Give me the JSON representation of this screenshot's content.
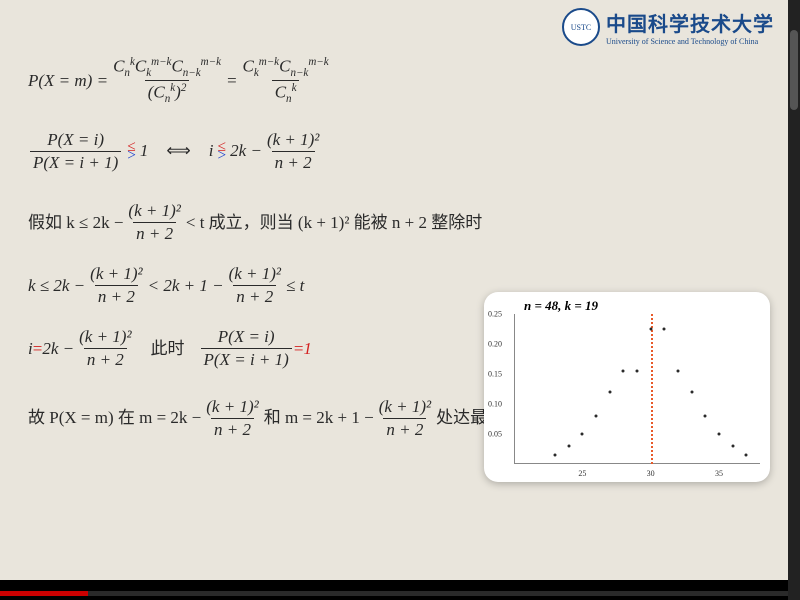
{
  "university": {
    "name_cn": "中国科学技术大学",
    "name_en": "University of Science and Technology of China"
  },
  "eq1": {
    "lhs": "P(X = m) = ",
    "f1_num": "C",
    "f1_den": "(Cₙᵏ)²",
    "mid": " = ",
    "f2_den": "Cₙᵏ"
  },
  "eq2": {
    "f_num": "P(X = i)",
    "f_den": "P(X = i + 1)",
    "one": " 1",
    "iff": " ⟺ ",
    "ivar": "i ",
    "rhs_a": " 2k − ",
    "rhs_fnum": "(k + 1)²",
    "rhs_fden": "n + 2"
  },
  "eq3": {
    "a": "假如 k ≤ 2k − ",
    "fnum": "(k + 1)²",
    "fden": "n + 2",
    "b": " < t 成立，则当 (k + 1)² 能被 n + 2 整除时"
  },
  "eq4": {
    "a": "k ≤ 2k − ",
    "f1num": "(k + 1)²",
    "f1den": "n + 2",
    "b": " < 2k + 1 − ",
    "f2num": "(k + 1)²",
    "f2den": "n + 2",
    "c": " ≤ t"
  },
  "eq5": {
    "ivar": "i",
    "eqs": " = ",
    "a": "2k − ",
    "fnum": "(k + 1)²",
    "fden": "n + 2",
    "label": "此时",
    "pf_num": "P(X = i)",
    "pf_den": "P(X = i + 1)",
    "eqs2": " = ",
    "one": "1"
  },
  "eq6": {
    "a": "故 P(X = m) 在 m = 2k − ",
    "f1num": "(k + 1)²",
    "f1den": "n + 2",
    "b": " 和 m = 2k + 1 − ",
    "f2num": "(k + 1)²",
    "f2den": "n + 2",
    "c": " 处达最大值."
  },
  "chart": {
    "title": "n = 48,  k = 19",
    "ylim": [
      0,
      0.25
    ],
    "yticks": [
      0.05,
      0.1,
      0.15,
      0.2,
      0.25
    ],
    "xlim": [
      20,
      38
    ],
    "xticks": [
      25,
      30,
      35
    ],
    "vline_x": 30,
    "points": [
      {
        "x": 23,
        "y": 0.015
      },
      {
        "x": 24,
        "y": 0.03
      },
      {
        "x": 25,
        "y": 0.05
      },
      {
        "x": 26,
        "y": 0.08
      },
      {
        "x": 27,
        "y": 0.12
      },
      {
        "x": 28,
        "y": 0.155
      },
      {
        "x": 29,
        "y": 0.155
      },
      {
        "x": 30,
        "y": 0.225
      },
      {
        "x": 31,
        "y": 0.225
      },
      {
        "x": 32,
        "y": 0.155
      },
      {
        "x": 33,
        "y": 0.12
      },
      {
        "x": 34,
        "y": 0.08
      },
      {
        "x": 35,
        "y": 0.05
      },
      {
        "x": 36,
        "y": 0.03
      },
      {
        "x": 37,
        "y": 0.015
      }
    ]
  },
  "leq_red": "≤",
  "geq_blue": ">"
}
